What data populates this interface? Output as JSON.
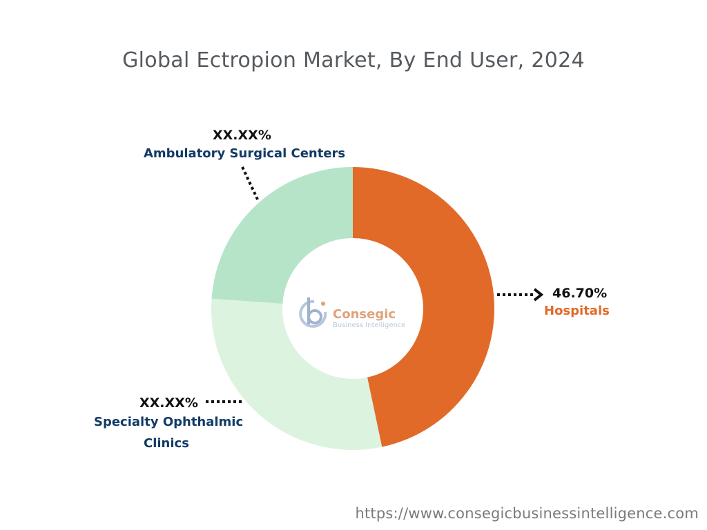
{
  "chart_data": {
    "type": "pie",
    "title": "Global Ectropion Market, By End User, 2024",
    "slices": [
      {
        "name": "Hospitals",
        "value_label": "46.70%",
        "value": 46.7,
        "color": "#e26a28",
        "label_color": "#e26a28"
      },
      {
        "name": "Specialty Ophthalmic Clinics",
        "name_lines": [
          "Specialty Ophthalmic",
          "Clinics"
        ],
        "value_label": "XX.XX%",
        "value": 29.4,
        "color": "#dcf3e0",
        "label_color": "#123a66"
      },
      {
        "name": "Ambulatory Surgical Centers",
        "value_label": "XX.XX%",
        "value": 23.9,
        "color": "#b6e4c9",
        "label_color": "#123a66"
      }
    ],
    "center_logo": {
      "brand": "Consegic",
      "tagline": "Business Intelligence"
    }
  },
  "footer": {
    "url": "https://www.consegicbusinessintelligence.com"
  }
}
